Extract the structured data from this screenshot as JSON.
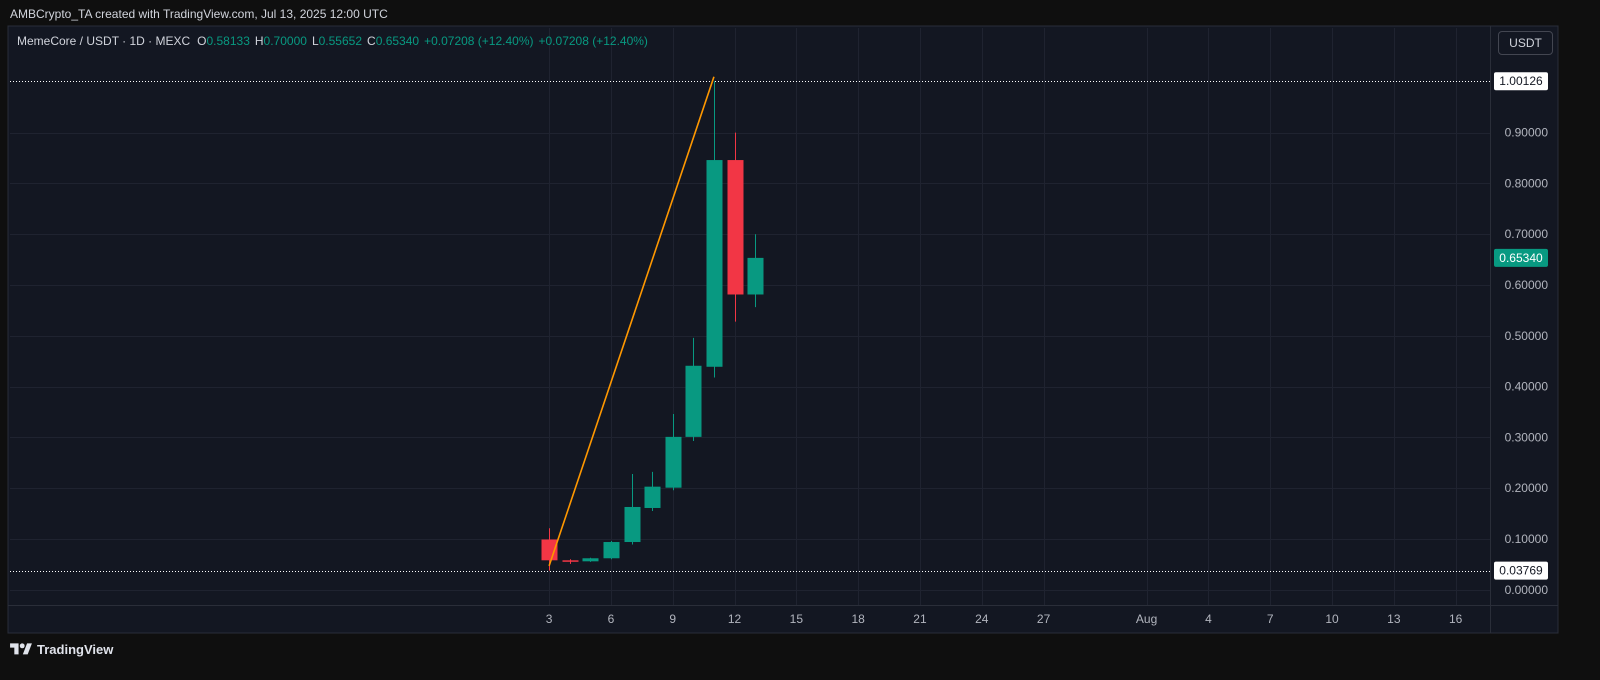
{
  "header": {
    "attribution": "AMBCrypto_TA created with TradingView.com, Jul 13, 2025 12:00 UTC"
  },
  "toolbar": {
    "currency_button": "USDT"
  },
  "footer": {
    "brand_name": "TradingView",
    "brand_icon": "tradingview-logo-icon"
  },
  "colors": {
    "up": "#089981",
    "down": "#f23645",
    "trend_line": "#ff9800",
    "horizontal_line": "#ffffff",
    "pane_background": "#131722",
    "axis_text": "#b2b5be"
  },
  "chart_data": {
    "type": "bar",
    "style": "candlestick",
    "legend": {
      "symbol": "MemeCore / USDT · 1D · MEXC",
      "open_label": "O",
      "open": "0.58133",
      "high_label": "H",
      "high": "0.70000",
      "low_label": "L",
      "low": "0.55652",
      "close_label": "C",
      "close": "0.65340",
      "change": "+0.07208 (+12.40%)",
      "change_repeat": "+0.07208 (+12.40%)"
    },
    "xlim": [
      "2025-06-07T08:00:00Z",
      "2025-08-18T04:00:00Z"
    ],
    "ylim": [
      -0.03,
      1.106
    ],
    "grid": true,
    "x_ticks": [
      {
        "label": "3",
        "date": "2025-07-03"
      },
      {
        "label": "6",
        "date": "2025-07-06"
      },
      {
        "label": "9",
        "date": "2025-07-09"
      },
      {
        "label": "12",
        "date": "2025-07-12"
      },
      {
        "label": "15",
        "date": "2025-07-15"
      },
      {
        "label": "18",
        "date": "2025-07-18"
      },
      {
        "label": "21",
        "date": "2025-07-21"
      },
      {
        "label": "24",
        "date": "2025-07-24"
      },
      {
        "label": "27",
        "date": "2025-07-27"
      },
      {
        "label": "Aug",
        "date": "2025-08-01"
      },
      {
        "label": "4",
        "date": "2025-08-04"
      },
      {
        "label": "7",
        "date": "2025-08-07"
      },
      {
        "label": "10",
        "date": "2025-08-10"
      },
      {
        "label": "13",
        "date": "2025-08-13"
      },
      {
        "label": "16",
        "date": "2025-08-16"
      }
    ],
    "y_ticks": [
      "0.00000",
      "0.10000",
      "0.20000",
      "0.30000",
      "0.40000",
      "0.50000",
      "0.60000",
      "0.70000",
      "0.80000",
      "0.90000"
    ],
    "candles": [
      {
        "date": "2025-07-03",
        "open": 0.099,
        "high": 0.121,
        "low": 0.03769,
        "close": 0.058
      },
      {
        "date": "2025-07-04",
        "open": 0.058,
        "high": 0.06,
        "low": 0.051,
        "close": 0.056
      },
      {
        "date": "2025-07-05",
        "open": 0.056,
        "high": 0.063,
        "low": 0.055,
        "close": 0.062
      },
      {
        "date": "2025-07-06",
        "open": 0.062,
        "high": 0.096,
        "low": 0.06,
        "close": 0.094
      },
      {
        "date": "2025-07-07",
        "open": 0.094,
        "high": 0.228,
        "low": 0.089,
        "close": 0.163
      },
      {
        "date": "2025-07-08",
        "open": 0.161,
        "high": 0.232,
        "low": 0.155,
        "close": 0.203
      },
      {
        "date": "2025-07-09",
        "open": 0.201,
        "high": 0.346,
        "low": 0.196,
        "close": 0.301
      },
      {
        "date": "2025-07-10",
        "open": 0.301,
        "high": 0.496,
        "low": 0.293,
        "close": 0.441
      },
      {
        "date": "2025-07-11",
        "open": 0.439,
        "high": 1.00126,
        "low": 0.418,
        "close": 0.846
      },
      {
        "date": "2025-07-12",
        "open": 0.846,
        "high": 0.9,
        "low": 0.528,
        "close": 0.58133
      },
      {
        "date": "2025-07-13",
        "open": 0.58133,
        "high": 0.7,
        "low": 0.55652,
        "close": 0.6534
      }
    ],
    "horizontal_lines": [
      "1.00126",
      "0.03769"
    ],
    "last_price_label": "0.65340",
    "trend_line": {
      "start": {
        "date": "2025-07-03",
        "price": 0.047
      },
      "end": {
        "date": "2025-07-11",
        "price": 1.01
      }
    }
  }
}
